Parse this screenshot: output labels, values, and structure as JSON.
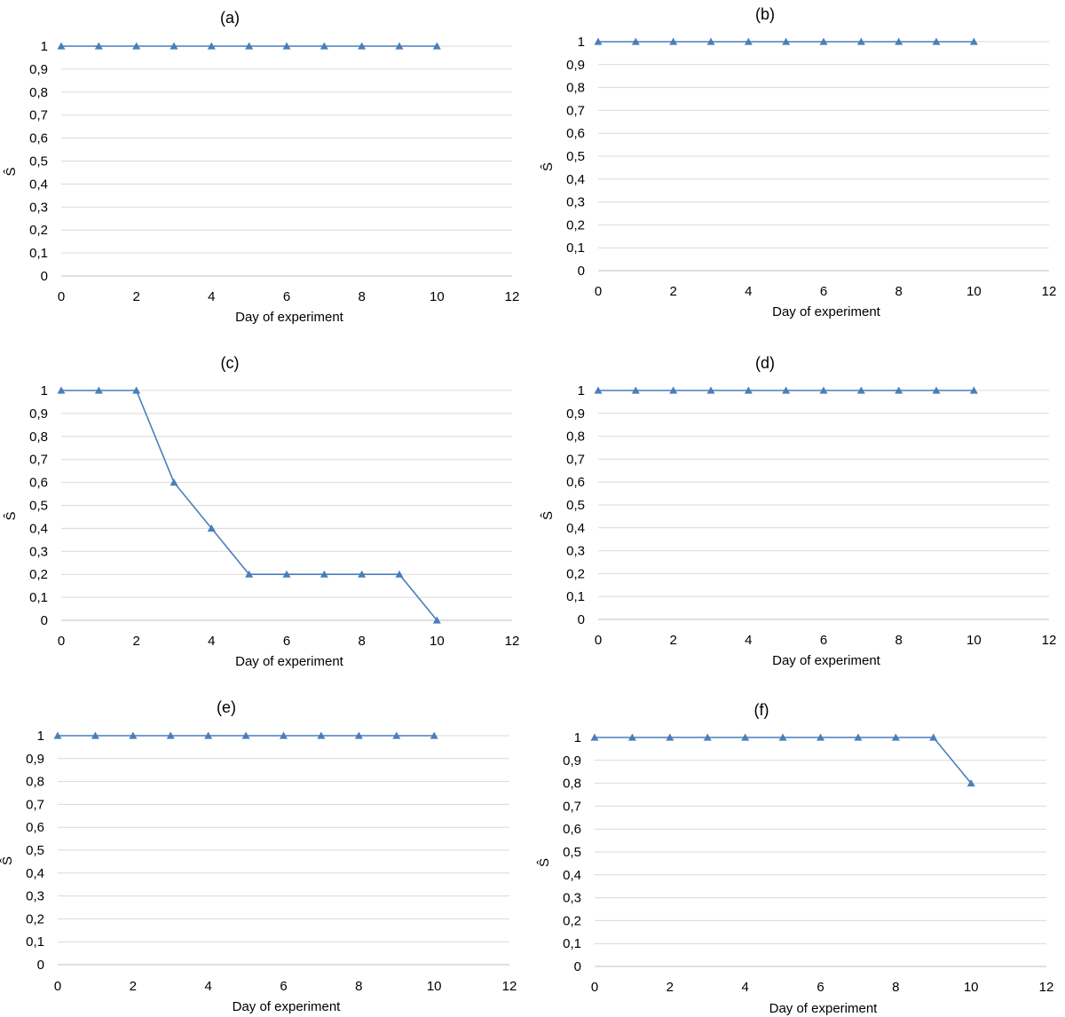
{
  "chart_data": [
    {
      "type": "line",
      "title": "(a)",
      "xlabel": "Day of experiment",
      "ylabel": "Ŝ",
      "xlim": [
        0,
        12
      ],
      "ylim": [
        0,
        1
      ],
      "xticks": [
        "0",
        "2",
        "4",
        "6",
        "8",
        "10",
        "12"
      ],
      "yticks": [
        "0",
        "0,1",
        "0,2",
        "0,3",
        "0,4",
        "0,5",
        "0,6",
        "0,7",
        "0,8",
        "0,9",
        "1"
      ],
      "grid": true,
      "marker": "triangle",
      "color": "#4a7ebb",
      "x": [
        0,
        1,
        2,
        3,
        4,
        5,
        6,
        7,
        8,
        9,
        10
      ],
      "y": [
        1,
        1,
        1,
        1,
        1,
        1,
        1,
        1,
        1,
        1,
        1
      ]
    },
    {
      "type": "line",
      "title": "(b)",
      "xlabel": "Day of experiment",
      "ylabel": "Ŝ",
      "xlim": [
        0,
        12
      ],
      "ylim": [
        0,
        1
      ],
      "xticks": [
        "0",
        "2",
        "4",
        "6",
        "8",
        "10",
        "12"
      ],
      "yticks": [
        "0",
        "0,1",
        "0,2",
        "0,3",
        "0,4",
        "0,5",
        "0,6",
        "0,7",
        "0,8",
        "0,9",
        "1"
      ],
      "grid": true,
      "marker": "triangle",
      "color": "#4a7ebb",
      "x": [
        0,
        1,
        2,
        3,
        4,
        5,
        6,
        7,
        8,
        9,
        10
      ],
      "y": [
        1,
        1,
        1,
        1,
        1,
        1,
        1,
        1,
        1,
        1,
        1
      ]
    },
    {
      "type": "line",
      "title": "(c)",
      "xlabel": "Day of experiment",
      "ylabel": "Ŝ",
      "xlim": [
        0,
        12
      ],
      "ylim": [
        0,
        1
      ],
      "xticks": [
        "0",
        "2",
        "4",
        "6",
        "8",
        "10",
        "12"
      ],
      "yticks": [
        "0",
        "0,1",
        "0,2",
        "0,3",
        "0,4",
        "0,5",
        "0,6",
        "0,7",
        "0,8",
        "0,9",
        "1"
      ],
      "grid": true,
      "marker": "triangle",
      "color": "#4a7ebb",
      "x": [
        0,
        1,
        2,
        3,
        4,
        5,
        6,
        7,
        8,
        9,
        10
      ],
      "y": [
        1,
        1,
        1,
        0.6,
        0.4,
        0.2,
        0.2,
        0.2,
        0.2,
        0.2,
        0
      ]
    },
    {
      "type": "line",
      "title": "(d)",
      "xlabel": "Day of experiment",
      "ylabel": "Ŝ",
      "xlim": [
        0,
        12
      ],
      "ylim": [
        0,
        1
      ],
      "xticks": [
        "0",
        "2",
        "4",
        "6",
        "8",
        "10",
        "12"
      ],
      "yticks": [
        "0",
        "0,1",
        "0,2",
        "0,3",
        "0,4",
        "0,5",
        "0,6",
        "0,7",
        "0,8",
        "0,9",
        "1"
      ],
      "grid": true,
      "marker": "triangle",
      "color": "#4a7ebb",
      "x": [
        0,
        1,
        2,
        3,
        4,
        5,
        6,
        7,
        8,
        9,
        10
      ],
      "y": [
        1,
        1,
        1,
        1,
        1,
        1,
        1,
        1,
        1,
        1,
        1
      ]
    },
    {
      "type": "line",
      "title": "(e)",
      "xlabel": "Day of experiment",
      "ylabel": "Ŝ",
      "xlim": [
        0,
        12
      ],
      "ylim": [
        0,
        1
      ],
      "xticks": [
        "0",
        "2",
        "4",
        "6",
        "8",
        "10",
        "12"
      ],
      "yticks": [
        "0",
        "0,1",
        "0,2",
        "0,3",
        "0,4",
        "0,5",
        "0,6",
        "0,7",
        "0,8",
        "0,9",
        "1"
      ],
      "grid": true,
      "marker": "triangle",
      "color": "#4a7ebb",
      "x": [
        0,
        1,
        2,
        3,
        4,
        5,
        6,
        7,
        8,
        9,
        10
      ],
      "y": [
        1,
        1,
        1,
        1,
        1,
        1,
        1,
        1,
        1,
        1,
        1
      ]
    },
    {
      "type": "line",
      "title": "(f)",
      "xlabel": "Day of experiment",
      "ylabel": "Ŝ",
      "xlim": [
        0,
        12
      ],
      "ylim": [
        0,
        1
      ],
      "xticks": [
        "0",
        "2",
        "4",
        "6",
        "8",
        "10",
        "12"
      ],
      "yticks": [
        "0",
        "0,1",
        "0,2",
        "0,3",
        "0,4",
        "0,5",
        "0,6",
        "0,7",
        "0,8",
        "0,9",
        "1"
      ],
      "grid": true,
      "marker": "triangle",
      "color": "#4a7ebb",
      "x": [
        0,
        1,
        2,
        3,
        4,
        5,
        6,
        7,
        8,
        9,
        10
      ],
      "y": [
        1,
        1,
        1,
        1,
        1,
        1,
        1,
        1,
        1,
        1,
        0.8
      ]
    }
  ]
}
